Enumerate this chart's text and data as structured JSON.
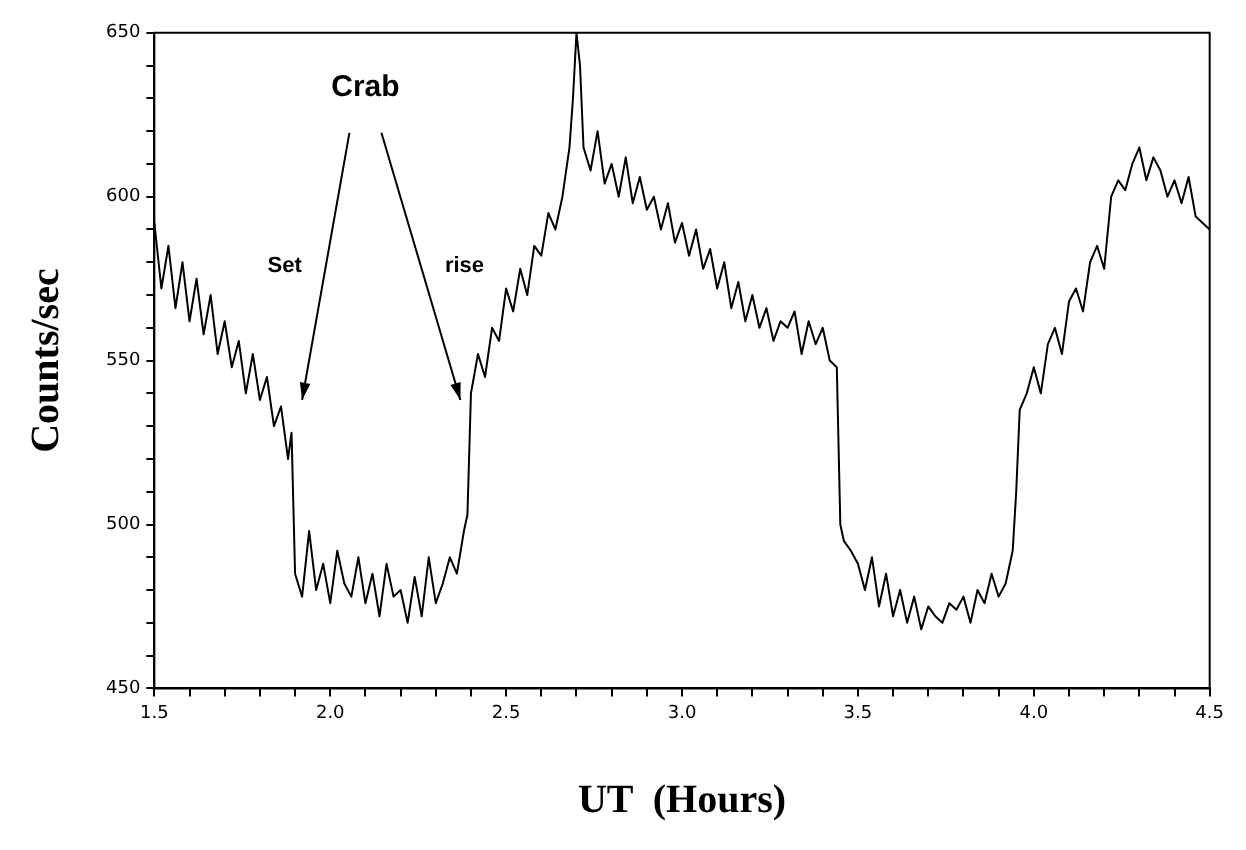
{
  "chart_data": {
    "type": "line",
    "xlabel": "UT  (Hours)",
    "ylabel": "Counts/sec",
    "xlim": [
      1.5,
      4.5
    ],
    "ylim": [
      450,
      650
    ],
    "xticks": [
      1.5,
      {
        "value": 1.6,
        "label": null
      },
      {
        "value": 1.7,
        "label": null
      },
      {
        "value": 1.8,
        "label": null
      },
      {
        "value": 1.9,
        "label": null
      },
      {
        "value": 2,
        "label": "2.0"
      },
      {
        "value": 2.1,
        "label": null
      },
      {
        "value": 2.2,
        "label": null
      },
      {
        "value": 2.3,
        "label": null
      },
      {
        "value": 2.4,
        "label": null
      },
      2.5,
      {
        "value": 2.6,
        "label": null
      },
      {
        "value": 2.7,
        "label": null
      },
      {
        "value": 2.8,
        "label": null
      },
      {
        "value": 2.9,
        "label": null
      },
      {
        "value": 3,
        "label": "3.0"
      },
      {
        "value": 3.1,
        "label": null
      },
      {
        "value": 3.2,
        "label": null
      },
      {
        "value": 3.3,
        "label": null
      },
      {
        "value": 3.4,
        "label": null
      },
      3.5,
      {
        "value": 3.6,
        "label": null
      },
      {
        "value": 3.7,
        "label": null
      },
      {
        "value": 3.8,
        "label": null
      },
      {
        "value": 3.9,
        "label": null
      },
      {
        "value": 4,
        "label": "4.0"
      },
      {
        "value": 4.1,
        "label": null
      },
      {
        "value": 4.2,
        "label": null
      },
      {
        "value": 4.3,
        "label": null
      },
      {
        "value": 4.4,
        "label": null
      },
      4.5
    ],
    "yticks": [
      450,
      {
        "value": 460,
        "label": null
      },
      {
        "value": 470,
        "label": null
      },
      {
        "value": 480,
        "label": null
      },
      {
        "value": 490,
        "label": null
      },
      500,
      {
        "value": 510,
        "label": null
      },
      {
        "value": 520,
        "label": null
      },
      {
        "value": 530,
        "label": null
      },
      {
        "value": 540,
        "label": null
      },
      550,
      {
        "value": 560,
        "label": null
      },
      {
        "value": 570,
        "label": null
      },
      {
        "value": 580,
        "label": null
      },
      {
        "value": 590,
        "label": null
      },
      600,
      {
        "value": 610,
        "label": null
      },
      {
        "value": 620,
        "label": null
      },
      {
        "value": 630,
        "label": null
      },
      {
        "value": 640,
        "label": null
      },
      650
    ],
    "grid": false,
    "legend": false,
    "marker": "none",
    "line_style": "solid",
    "annotations": [
      "Set",
      "rise",
      "Crab"
    ],
    "series": [
      {
        "color": "#000000",
        "x": [
          1.5,
          1.52,
          1.54,
          1.56,
          1.58,
          1.6,
          1.62,
          1.64,
          1.66,
          1.68,
          1.7,
          1.72,
          1.74,
          1.76,
          1.78,
          1.8,
          1.82,
          1.84,
          1.86,
          1.88,
          1.89,
          1.9,
          1.92,
          1.94,
          1.96,
          1.98,
          2.0,
          2.02,
          2.04,
          2.06,
          2.08,
          2.1,
          2.12,
          2.14,
          2.16,
          2.18,
          2.2,
          2.22,
          2.24,
          2.26,
          2.28,
          2.3,
          2.32,
          2.34,
          2.36,
          2.38,
          2.39,
          2.4,
          2.42,
          2.44,
          2.46,
          2.48,
          2.5,
          2.52,
          2.54,
          2.56,
          2.58,
          2.6,
          2.62,
          2.64,
          2.66,
          2.68,
          2.69,
          2.7,
          2.71,
          2.72,
          2.74,
          2.76,
          2.78,
          2.8,
          2.82,
          2.84,
          2.86,
          2.88,
          2.9,
          2.92,
          2.94,
          2.96,
          2.98,
          3.0,
          3.02,
          3.04,
          3.06,
          3.08,
          3.1,
          3.12,
          3.14,
          3.16,
          3.18,
          3.2,
          3.22,
          3.24,
          3.26,
          3.28,
          3.3,
          3.32,
          3.34,
          3.36,
          3.38,
          3.4,
          3.42,
          3.44,
          3.45,
          3.46,
          3.48,
          3.5,
          3.52,
          3.54,
          3.56,
          3.58,
          3.6,
          3.62,
          3.64,
          3.66,
          3.68,
          3.7,
          3.72,
          3.74,
          3.76,
          3.78,
          3.8,
          3.82,
          3.84,
          3.86,
          3.88,
          3.9,
          3.92,
          3.94,
          3.95,
          3.96,
          3.98,
          4.0,
          4.02,
          4.04,
          4.06,
          4.08,
          4.1,
          4.12,
          4.14,
          4.16,
          4.18,
          4.2,
          4.22,
          4.24,
          4.26,
          4.28,
          4.3,
          4.32,
          4.34,
          4.36,
          4.38,
          4.4,
          4.42,
          4.44,
          4.46,
          4.48,
          4.5
        ],
        "values": [
          592,
          572,
          585,
          566,
          580,
          562,
          575,
          558,
          570,
          552,
          562,
          548,
          556,
          540,
          552,
          538,
          545,
          530,
          536,
          520,
          528,
          485,
          478,
          498,
          480,
          488,
          476,
          492,
          482,
          478,
          490,
          476,
          485,
          472,
          488,
          478,
          480,
          470,
          484,
          472,
          490,
          476,
          482,
          490,
          485,
          498,
          503,
          540,
          552,
          545,
          560,
          556,
          572,
          565,
          578,
          570,
          585,
          582,
          595,
          590,
          600,
          615,
          630,
          650,
          640,
          615,
          608,
          620,
          604,
          610,
          600,
          612,
          598,
          606,
          596,
          600,
          590,
          598,
          586,
          592,
          582,
          590,
          578,
          584,
          572,
          580,
          566,
          574,
          562,
          570,
          560,
          566,
          556,
          562,
          560,
          565,
          552,
          562,
          555,
          560,
          550,
          548,
          500,
          495,
          492,
          488,
          480,
          490,
          475,
          485,
          472,
          480,
          470,
          478,
          468,
          475,
          472,
          470,
          476,
          474,
          478,
          470,
          480,
          476,
          485,
          478,
          482,
          492,
          510,
          535,
          540,
          548,
          540,
          555,
          560,
          552,
          568,
          572,
          565,
          580,
          585,
          578,
          600,
          605,
          602,
          610,
          615,
          605,
          612,
          608,
          600,
          605,
          598,
          606,
          594,
          592,
          590
        ]
      }
    ]
  }
}
